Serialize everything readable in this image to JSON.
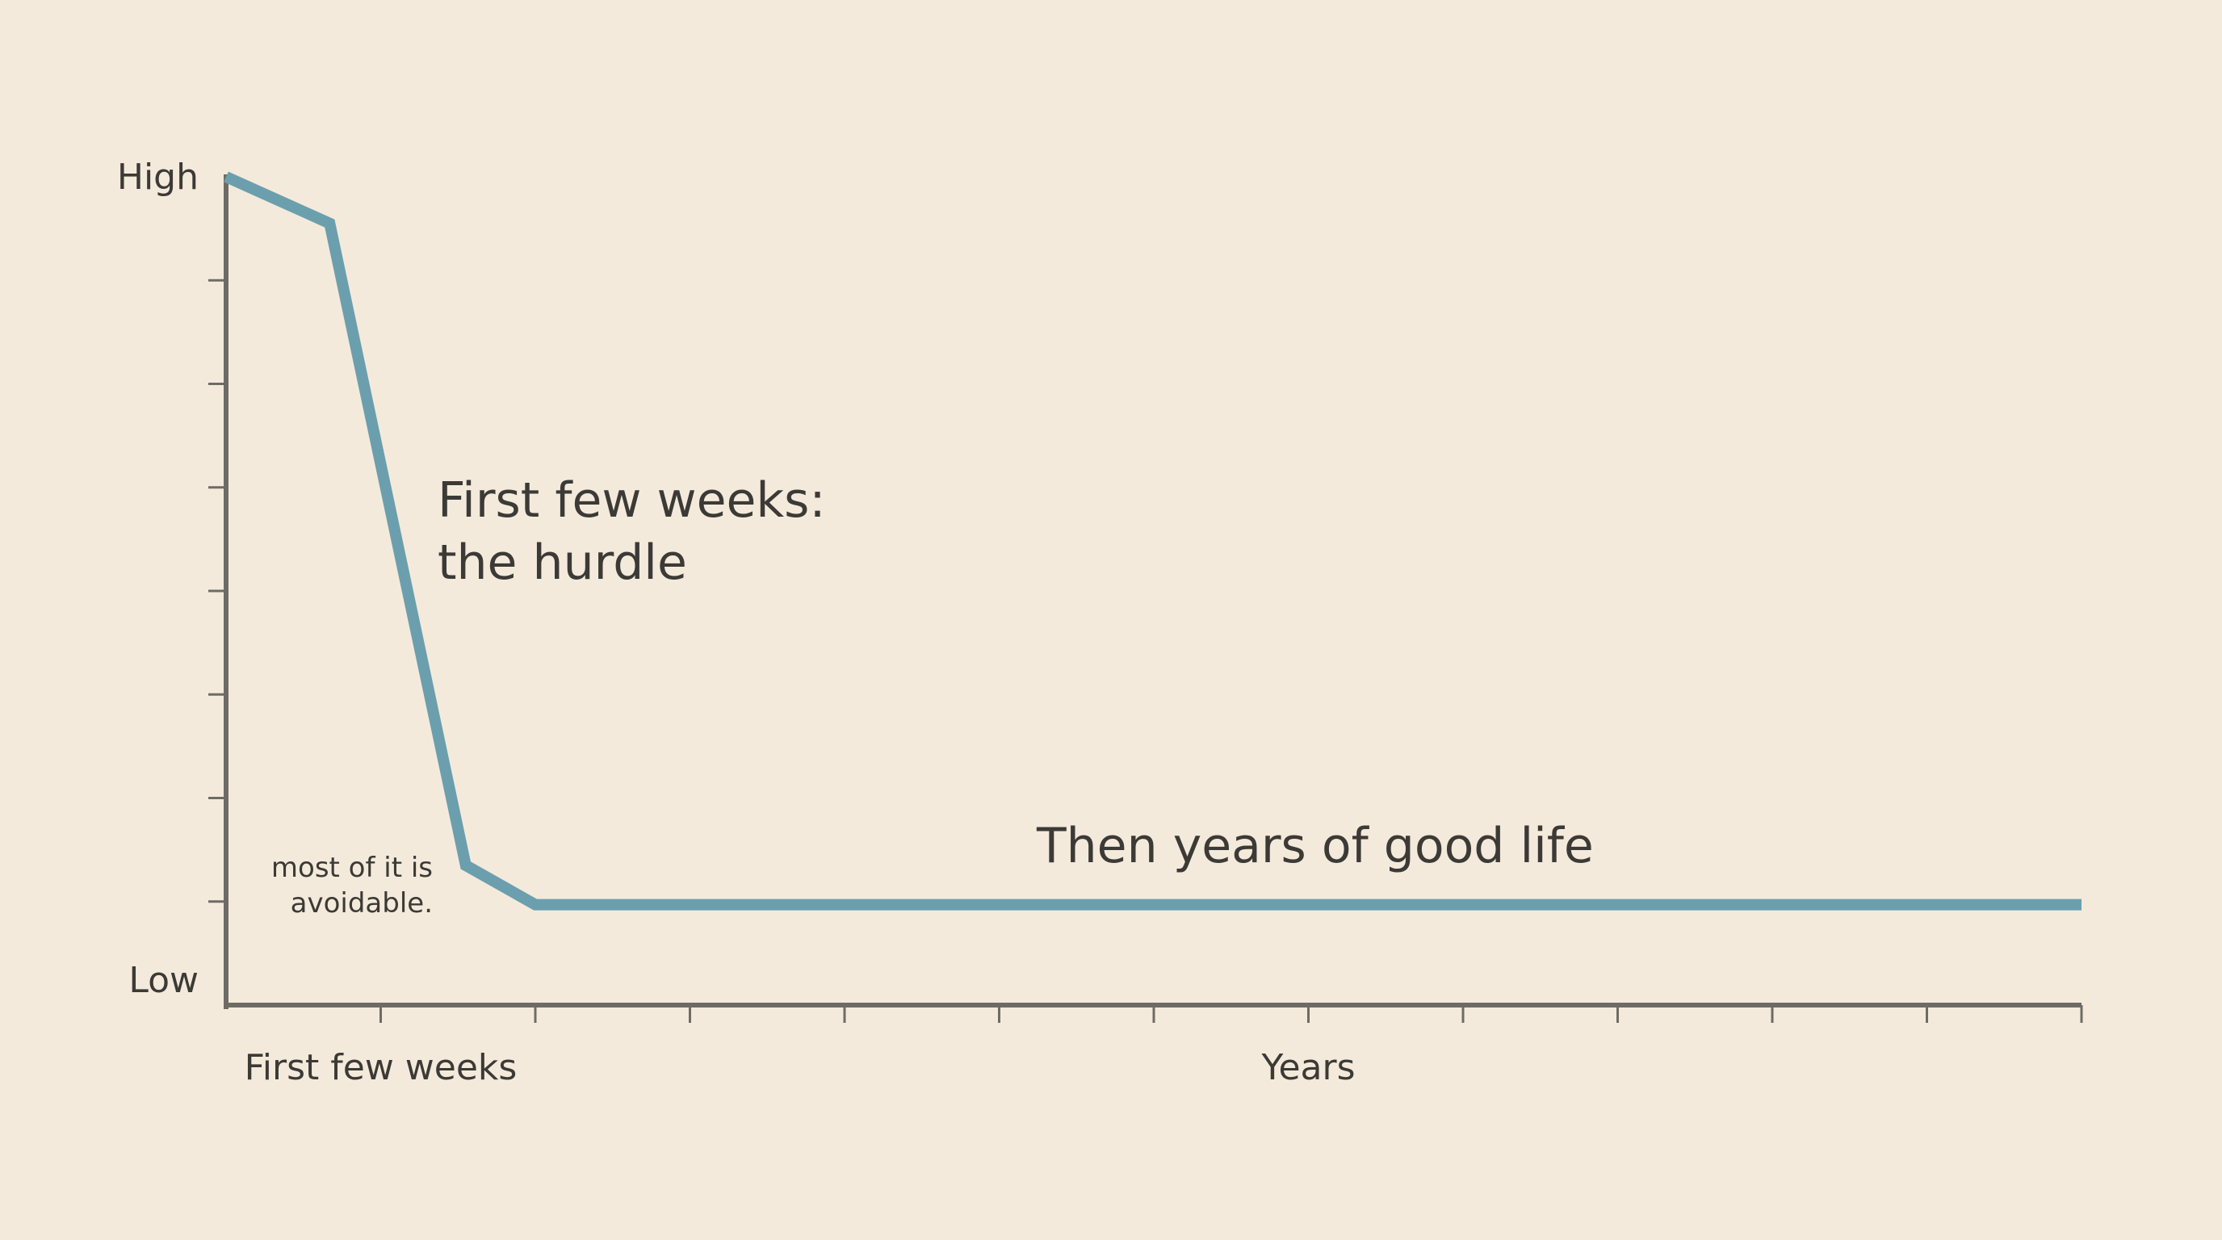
{
  "chart_data": {
    "type": "line",
    "title": "",
    "xlabel": "",
    "ylabel": "",
    "x_tick_labels": [
      {
        "x": 1,
        "label": "First few weeks"
      },
      {
        "x": 7,
        "label": "Years"
      }
    ],
    "y_tick_labels": [
      {
        "y": 8,
        "label": "High"
      },
      {
        "y": 0,
        "label": "Low"
      }
    ],
    "xlim": [
      0,
      12
    ],
    "ylim": [
      0,
      8
    ],
    "x_ticks": [
      1,
      2,
      3,
      4,
      5,
      6,
      7,
      8,
      9,
      10,
      11,
      12
    ],
    "y_ticks": [
      1,
      2,
      3,
      4,
      5,
      6,
      7
    ],
    "grid": false,
    "series": [
      {
        "color": "#6b9fae",
        "points": [
          {
            "x": 0.0,
            "y": 8.0
          },
          {
            "x": 0.67,
            "y": 7.55
          },
          {
            "x": 1.55,
            "y": 1.35
          },
          {
            "x": 2.0,
            "y": 0.97
          },
          {
            "x": 12.0,
            "y": 0.97
          }
        ]
      }
    ],
    "annotations": [
      {
        "id": "hurdle",
        "lines": [
          "First few weeks:",
          "the hurdle"
        ]
      },
      {
        "id": "avoidable",
        "lines": [
          "most of it is",
          "avoidable."
        ]
      },
      {
        "id": "good-life",
        "lines": [
          "Then years of good life"
        ]
      }
    ],
    "colors": {
      "background": "#f4eadb",
      "axis": "#6e6b66",
      "line": "#6b9fae",
      "text": "#3c3a36"
    }
  }
}
